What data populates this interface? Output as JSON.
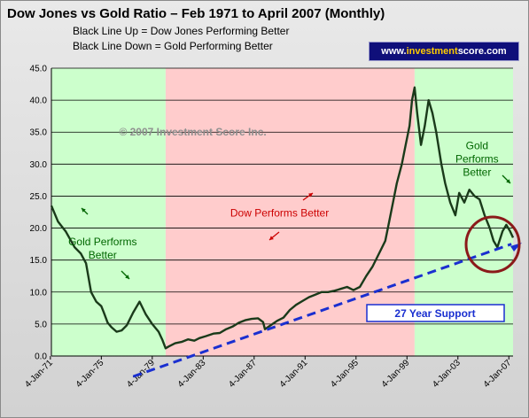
{
  "title": "Dow Jones vs Gold Ratio – Feb 1971 to April 2007 (Monthly)",
  "subtitle_lines": [
    "Black Line Up = Dow Jones Performing Better",
    "Black Line Down = Gold Performing Better"
  ],
  "brand": {
    "prefix": "www.",
    "highlight": "investment",
    "suffix": "score.com"
  },
  "colors": {
    "gold_region": "#ccffcc",
    "dow_region": "#ffcccc",
    "line": "#1a3a1a",
    "support": "#1a2fd0",
    "annotation_red": "#cc0000",
    "circle": "#8b1a1a"
  },
  "chart_data": {
    "type": "line",
    "title": "Dow Jones vs Gold Ratio – Feb 1971 to April 2007 (Monthly)",
    "xlabel": "",
    "ylabel": "",
    "xlim": [
      1971.08,
      2007.33
    ],
    "ylim": [
      0,
      45
    ],
    "y_ticks": [
      0.0,
      5.0,
      10.0,
      15.0,
      20.0,
      25.0,
      30.0,
      35.0,
      40.0,
      45.0
    ],
    "y_tick_labels": [
      "0.0",
      "5.0",
      "10.0",
      "15.0",
      "20.0",
      "25.0",
      "30.0",
      "35.0",
      "40.0",
      "45.0"
    ],
    "x_ticks": [
      1971,
      1975,
      1979,
      1983,
      1987,
      1991,
      1995,
      1999,
      2003,
      2007
    ],
    "x_tick_labels": [
      "4-Jan-71",
      "4-Jan-75",
      "4-Jan-79",
      "4-Jan-83",
      "4-Jan-87",
      "4-Jan-91",
      "4-Jan-95",
      "4-Jan-99",
      "4-Jan-03",
      "4-Jan-07"
    ],
    "grid": true,
    "regions": [
      {
        "label": "Gold Performs Better",
        "x": [
          1971.08,
          1980.05
        ],
        "color": "#ccffcc"
      },
      {
        "label": "Dow Performs Better",
        "x": [
          1980.05,
          1999.6
        ],
        "color": "#ffcccc"
      },
      {
        "label": "Gold Performs Better",
        "x": [
          1999.6,
          2007.33
        ],
        "color": "#ccffcc"
      }
    ],
    "series": [
      {
        "name": "Dow/Gold ratio",
        "x": [
          1971.08,
          1971.6,
          1972.2,
          1972.9,
          1973.4,
          1973.8,
          1974.2,
          1974.6,
          1975.0,
          1975.2,
          1975.5,
          1975.8,
          1976.2,
          1976.6,
          1977.0,
          1977.5,
          1978.0,
          1978.5,
          1979.0,
          1979.5,
          1979.8,
          1980.05,
          1980.3,
          1980.8,
          1981.3,
          1981.8,
          1982.3,
          1982.7,
          1983.2,
          1983.8,
          1984.3,
          1984.8,
          1985.3,
          1985.8,
          1986.3,
          1986.8,
          1987.3,
          1987.7,
          1987.85,
          1988.3,
          1988.8,
          1989.3,
          1989.8,
          1990.3,
          1990.8,
          1991.3,
          1991.8,
          1992.3,
          1992.8,
          1993.3,
          1993.8,
          1994.3,
          1994.8,
          1995.3,
          1995.8,
          1996.3,
          1996.8,
          1997.3,
          1997.6,
          1997.9,
          1998.2,
          1998.6,
          1998.9,
          1999.2,
          1999.4,
          1999.6,
          1999.8,
          2000.1,
          2000.4,
          2000.7,
          2001.0,
          2001.3,
          2001.7,
          2002.0,
          2002.4,
          2002.8,
          2003.1,
          2003.5,
          2003.9,
          2004.3,
          2004.7,
          2005.1,
          2005.5,
          2005.8,
          2006.1,
          2006.5,
          2006.8,
          2007.1,
          2007.33
        ],
        "values": [
          23.5,
          21,
          19.5,
          17,
          16,
          14.5,
          10,
          8.5,
          7.8,
          6.8,
          5.2,
          4.5,
          3.8,
          4,
          4.8,
          6.8,
          8.5,
          6.5,
          5,
          3.8,
          2.5,
          1.2,
          1.5,
          2,
          2.2,
          2.6,
          2.4,
          2.8,
          3.1,
          3.5,
          3.6,
          4.2,
          4.6,
          5.2,
          5.6,
          5.8,
          5.9,
          5.3,
          4.2,
          4.8,
          5.5,
          6,
          7.2,
          8,
          8.6,
          9.2,
          9.6,
          10,
          10,
          10.2,
          10.5,
          10.8,
          10.3,
          10.8,
          12.5,
          14,
          16,
          18,
          21,
          24,
          27,
          30,
          33,
          36,
          40,
          42,
          38,
          33,
          36,
          40,
          38,
          35,
          30,
          27,
          24,
          22,
          25.5,
          24,
          26,
          25,
          24.5,
          22,
          20,
          18,
          17,
          19.5,
          20.5,
          19.5,
          18.5
        ]
      }
    ],
    "support_line": {
      "label": "27 Year Support",
      "x": [
        1977.5,
        2007.2
      ],
      "y": [
        -3.2,
        17.5
      ]
    },
    "annotations": [
      {
        "text": "© 2007 Investment Score Inc.",
        "x": 1976.4,
        "y": 34.5
      },
      {
        "text": "Gold Performs Better",
        "x": 1975.1,
        "y": 17.3
      },
      {
        "text": "Dow Performs Better",
        "x": 1989.0,
        "y": 21.8
      },
      {
        "text": "Gold Performs Better",
        "x": 2004.5,
        "y": 32.3
      }
    ]
  }
}
